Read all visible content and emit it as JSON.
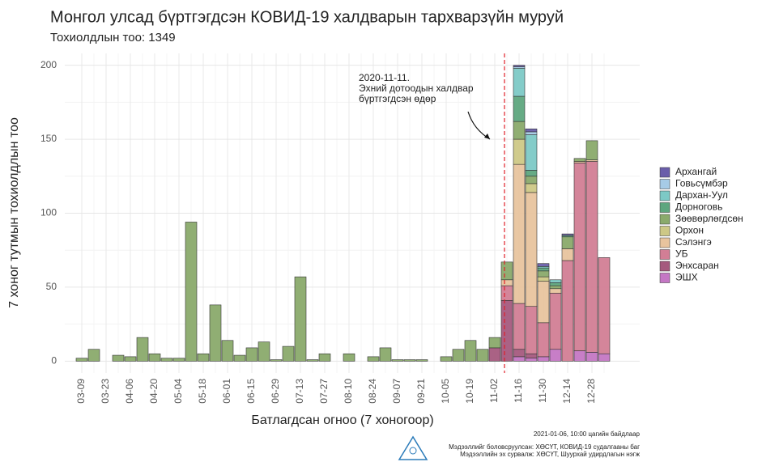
{
  "chart_data": {
    "type": "stacked_bar",
    "title": "Монгол улсад бүртгэгдсэн КОВИД-19 халдварын тархварзүйн муруй",
    "subtitle": "Тохиолдлын тоо: 1349",
    "x_label": "Батлагдсан огноо (7 хоногоор)",
    "y_label": "7 хоног тутмын тохиолдлын тоо",
    "annotation": [
      "2020-11-11.",
      "Эхний дотоодын халдвар",
      "бүртгэгдсэн өдөр"
    ],
    "footer": [
      "2021-01-06, 10:00 цагийн байдлаар",
      "Мэдээллийг боловсруулсан: ХӨСҮТ, КОВИД-19 судалгааны баг",
      "Мэдээллийн эх сурвалж: ХӨСҮТ, Шуурхай удирдлагын нэгж"
    ],
    "categories": [
      "03-09",
      null,
      "03-23",
      null,
      "04-06",
      null,
      "04-20",
      null,
      "05-04",
      null,
      "05-18",
      null,
      "06-01",
      null,
      "06-15",
      null,
      "06-29",
      null,
      "07-13",
      null,
      "07-27",
      null,
      "08-10",
      null,
      "08-24",
      null,
      "09-07",
      null,
      "09-21",
      null,
      "10-05",
      null,
      "10-19",
      null,
      "11-02",
      null,
      "11-16",
      null,
      "11-30",
      null,
      "12-14",
      null,
      "12-28",
      null
    ],
    "series": [
      {
        "name": "Архангай",
        "color": "#6a5eaa",
        "values": [
          0,
          0,
          0,
          0,
          0,
          0,
          0,
          0,
          0,
          0,
          0,
          0,
          0,
          0,
          0,
          0,
          0,
          0,
          0,
          0,
          0,
          0,
          0,
          0,
          0,
          0,
          0,
          0,
          0,
          0,
          0,
          0,
          0,
          0,
          0,
          0,
          1,
          2,
          2,
          0,
          1,
          0,
          0,
          0
        ]
      },
      {
        "name": "Говьсүмбэр",
        "color": "#a6cbe6",
        "values": [
          0,
          0,
          0,
          0,
          0,
          0,
          0,
          0,
          0,
          0,
          0,
          0,
          0,
          0,
          0,
          0,
          0,
          0,
          0,
          0,
          0,
          0,
          0,
          0,
          0,
          0,
          0,
          0,
          0,
          0,
          0,
          0,
          0,
          0,
          0,
          0,
          1,
          2,
          0,
          0,
          0,
          0,
          0,
          0
        ]
      },
      {
        "name": "Дархан-Уул",
        "color": "#7dc9c6",
        "values": [
          0,
          0,
          0,
          0,
          0,
          0,
          0,
          0,
          0,
          0,
          0,
          0,
          0,
          0,
          0,
          0,
          0,
          0,
          0,
          0,
          0,
          0,
          0,
          0,
          0,
          0,
          0,
          0,
          0,
          0,
          0,
          0,
          0,
          0,
          0,
          0,
          19,
          24,
          1,
          2,
          0,
          0,
          0,
          0
        ]
      },
      {
        "name": "Дорноговь",
        "color": "#5ea67e",
        "values": [
          0,
          0,
          0,
          0,
          0,
          0,
          0,
          0,
          0,
          0,
          0,
          0,
          0,
          0,
          0,
          0,
          0,
          0,
          0,
          0,
          0,
          0,
          0,
          0,
          0,
          0,
          0,
          0,
          0,
          0,
          0,
          0,
          0,
          0,
          0,
          0,
          17,
          4,
          2,
          2,
          1,
          0,
          0,
          0
        ]
      },
      {
        "name": "Зөөвөрлөгдсөн",
        "color": "#8aaa6c",
        "values": [
          2,
          8,
          0,
          4,
          3,
          16,
          5,
          2,
          2,
          94,
          5,
          38,
          14,
          4,
          9,
          13,
          1,
          10,
          57,
          1,
          5,
          0,
          5,
          0,
          3,
          9,
          1,
          1,
          1,
          0,
          3,
          8,
          14,
          8,
          7,
          12,
          12,
          5,
          4,
          2,
          8,
          2,
          13,
          0
        ]
      },
      {
        "name": "Орхон",
        "color": "#cdc886",
        "values": [
          0,
          0,
          0,
          0,
          0,
          0,
          0,
          0,
          0,
          0,
          0,
          0,
          0,
          0,
          0,
          0,
          0,
          0,
          0,
          0,
          0,
          0,
          0,
          0,
          0,
          0,
          0,
          0,
          0,
          0,
          0,
          0,
          0,
          0,
          0,
          0,
          17,
          6,
          3,
          0,
          0,
          0,
          0,
          0
        ]
      },
      {
        "name": "Сэлэнгэ",
        "color": "#e8c49e",
        "values": [
          0,
          0,
          0,
          0,
          0,
          0,
          0,
          0,
          0,
          0,
          0,
          0,
          0,
          0,
          0,
          0,
          0,
          0,
          0,
          0,
          0,
          0,
          0,
          0,
          0,
          0,
          0,
          0,
          0,
          0,
          0,
          0,
          0,
          0,
          0,
          4,
          94,
          77,
          28,
          3,
          8,
          1,
          1,
          0
        ]
      },
      {
        "name": "УБ",
        "color": "#d27e95",
        "values": [
          0,
          0,
          0,
          0,
          0,
          0,
          0,
          0,
          0,
          0,
          0,
          0,
          0,
          0,
          0,
          0,
          0,
          0,
          0,
          0,
          0,
          0,
          0,
          0,
          0,
          0,
          0,
          0,
          0,
          0,
          0,
          0,
          0,
          0,
          0,
          10,
          31,
          32,
          23,
          38,
          68,
          127,
          129,
          65
        ]
      },
      {
        "name": "Энхсаран",
        "color": "#a55a7e",
        "values": [
          0,
          0,
          0,
          0,
          0,
          0,
          0,
          0,
          0,
          0,
          0,
          0,
          0,
          0,
          0,
          0,
          0,
          0,
          0,
          0,
          0,
          0,
          0,
          0,
          0,
          0,
          0,
          0,
          0,
          0,
          0,
          0,
          0,
          0,
          9,
          41,
          5,
          3,
          0,
          0,
          0,
          0,
          0,
          0
        ]
      },
      {
        "name": "ЭШХ",
        "color": "#c477c4",
        "values": [
          0,
          0,
          0,
          0,
          0,
          0,
          0,
          0,
          0,
          0,
          0,
          0,
          0,
          0,
          0,
          0,
          0,
          0,
          0,
          0,
          0,
          0,
          0,
          0,
          0,
          0,
          0,
          0,
          0,
          0,
          0,
          0,
          0,
          0,
          0,
          0,
          3,
          2,
          3,
          8,
          0,
          7,
          6,
          5
        ]
      }
    ],
    "ylim": [
      -8,
      208
    ],
    "yticks": [
      0,
      50,
      100,
      150,
      200
    ],
    "grid": true,
    "legend": "right"
  }
}
